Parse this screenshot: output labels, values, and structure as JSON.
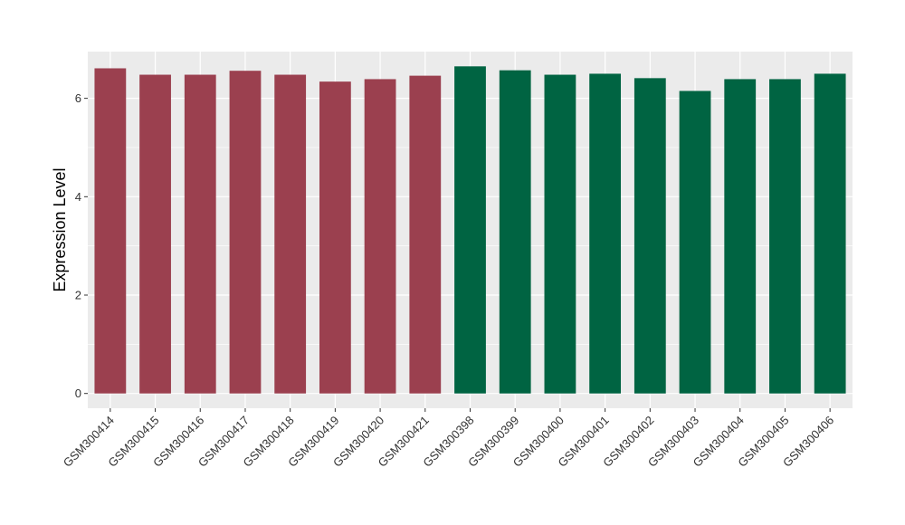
{
  "chart_data": {
    "type": "bar",
    "title": "",
    "xlabel": "",
    "ylabel": "Expression Level",
    "ylim": [
      -0.3,
      6.95
    ],
    "yticks": [
      0,
      2,
      4,
      6
    ],
    "grid": true,
    "legend": "none",
    "categories": [
      "GSM300414",
      "GSM300415",
      "GSM300416",
      "GSM300417",
      "GSM300418",
      "GSM300419",
      "GSM300420",
      "GSM300421",
      "GSM300398",
      "GSM300399",
      "GSM300400",
      "GSM300401",
      "GSM300402",
      "GSM300403",
      "GSM300404",
      "GSM300405",
      "GSM300406"
    ],
    "values": [
      6.61,
      6.48,
      6.48,
      6.56,
      6.48,
      6.34,
      6.39,
      6.46,
      6.65,
      6.57,
      6.48,
      6.5,
      6.41,
      6.15,
      6.39,
      6.39,
      6.5
    ],
    "groups": [
      0,
      0,
      0,
      0,
      0,
      0,
      0,
      0,
      1,
      1,
      1,
      1,
      1,
      1,
      1,
      1,
      1
    ],
    "group_colors": [
      "#9b404f",
      "#006442"
    ],
    "panel_color": "#ebebeb",
    "grid_color": "#ffffff"
  }
}
